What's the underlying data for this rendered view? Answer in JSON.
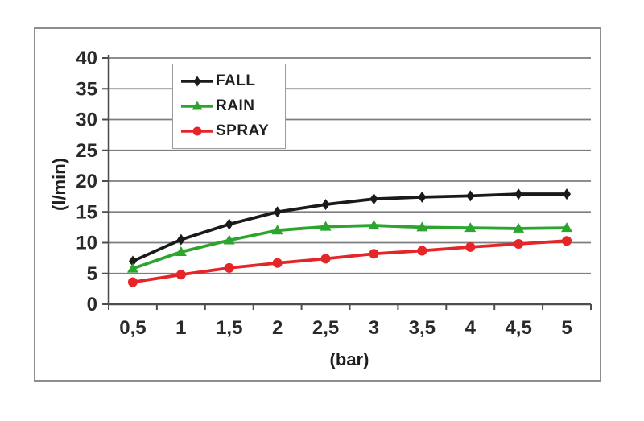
{
  "chart_data": {
    "type": "line",
    "title": "",
    "xlabel": "(bar)",
    "ylabel": "(l/min)",
    "categories": [
      "0,5",
      "1",
      "1,5",
      "2",
      "2,5",
      "3",
      "3,5",
      "4",
      "4,5",
      "5"
    ],
    "x_values": [
      0.5,
      1,
      1.5,
      2,
      2.5,
      3,
      3.5,
      4,
      4.5,
      5
    ],
    "ylim": [
      0,
      40
    ],
    "ytick_step": 5,
    "ytick_labels": [
      "0",
      "5",
      "10",
      "15",
      "20",
      "25",
      "30",
      "35",
      "40"
    ],
    "grid": true,
    "legend_position": "inside-top-left",
    "series": [
      {
        "name": "FALL",
        "color": "#1a1a1a",
        "marker": "diamond",
        "values": [
          7.0,
          10.5,
          13.0,
          15.0,
          16.2,
          17.1,
          17.4,
          17.6,
          17.9,
          17.9
        ]
      },
      {
        "name": "RAIN",
        "color": "#2ba52e",
        "marker": "triangle",
        "values": [
          5.8,
          8.5,
          10.4,
          12.0,
          12.6,
          12.8,
          12.5,
          12.4,
          12.3,
          12.4
        ]
      },
      {
        "name": "SPRAY",
        "color": "#e52528",
        "marker": "circle",
        "values": [
          3.6,
          4.8,
          5.9,
          6.7,
          7.4,
          8.2,
          8.7,
          9.3,
          9.8,
          10.3
        ]
      }
    ]
  },
  "style": {
    "grid_color": "#7d7d7d",
    "axis_color": "#4d4d4d",
    "frame_color": "#8e8e8e",
    "text_color": "#2a2a2a"
  }
}
